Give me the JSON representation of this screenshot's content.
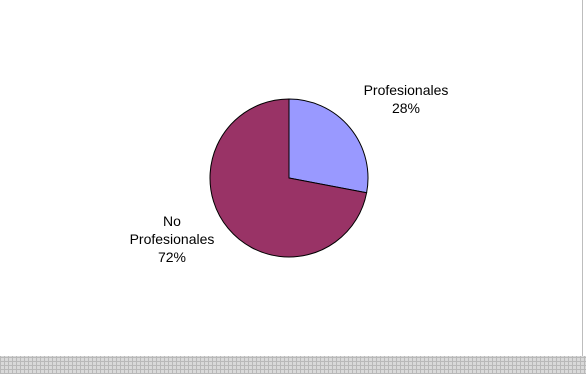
{
  "chart_data": {
    "type": "pie",
    "title": "",
    "slices": [
      {
        "label_lines": [
          "Profesionales"
        ],
        "percent_label": "28%",
        "value": 28,
        "color": "#9999ff"
      },
      {
        "label_lines": [
          "No",
          "Profesionales"
        ],
        "percent_label": "72%",
        "value": 72,
        "color": "#993366"
      }
    ],
    "start_angle_deg": 90,
    "direction": "clockwise",
    "slice_border_color": "#000000",
    "legend": "none"
  }
}
